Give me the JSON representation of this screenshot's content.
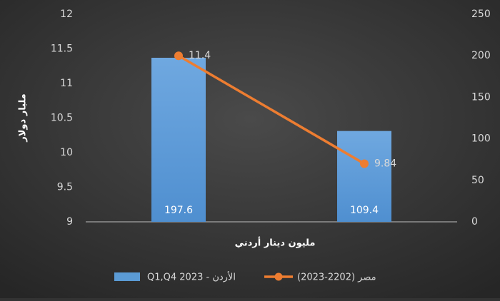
{
  "chart_data": {
    "type": "bar-line",
    "categories": [
      null,
      null
    ],
    "series": [
      {
        "name": "Q1,Q4 2023 - الأردن",
        "type": "bar",
        "axis": "y2",
        "color": "#5b9bd5",
        "values": [
          197.6,
          109.4
        ]
      },
      {
        "name": "مصر (2202-2023)",
        "type": "line",
        "axis": "y",
        "color": "#ed7d31",
        "values": [
          11.4,
          9.84
        ]
      }
    ],
    "x_label": "مليون دينار أردني",
    "y_label": "مليار دولار",
    "ylim": [
      9,
      12
    ],
    "yticks": [
      9,
      9.5,
      10,
      10.5,
      11,
      11.5,
      12
    ],
    "y2lim": [
      0,
      250
    ],
    "y2ticks": [
      0,
      50,
      100,
      150,
      200,
      250
    ],
    "grid": false,
    "legend": "bottom"
  }
}
